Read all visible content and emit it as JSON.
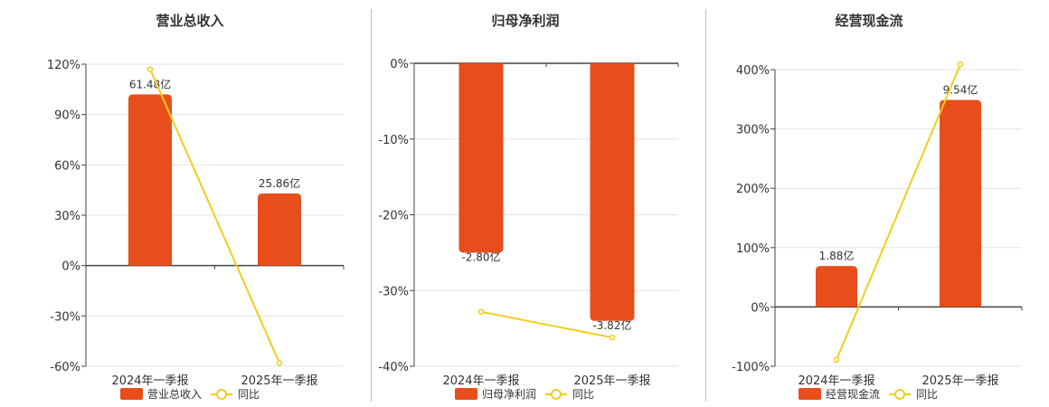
{
  "colors": {
    "bar": "#e84d1c",
    "line": "#f2cd1e",
    "grid": "#e3e3e3",
    "axis": "#444444",
    "divider": "#bdbdbd"
  },
  "legend_line_label": "同比",
  "chart_data": [
    {
      "type": "bar",
      "title": "营业总收入",
      "categories": [
        "2024年一季报",
        "2025年一季报"
      ],
      "series": [
        {
          "name": "营业总收入",
          "kind": "bar",
          "values": [
            61.48,
            25.86
          ],
          "labels": [
            "61.48亿",
            "25.86亿"
          ]
        },
        {
          "name": "同比",
          "kind": "line",
          "values": [
            117,
            -58
          ]
        }
      ],
      "bar_heights_pct": [
        102,
        43
      ],
      "yticks": [
        "120%",
        "90%",
        "60%",
        "30%",
        "0%",
        "-30%",
        "-60%"
      ],
      "ylim": [
        -60,
        120
      ],
      "grid": true,
      "legend": "bottom"
    },
    {
      "type": "bar",
      "title": "归母净利润",
      "categories": [
        "2024年一季报",
        "2025年一季报"
      ],
      "series": [
        {
          "name": "归母净利润",
          "kind": "bar",
          "values": [
            -2.8,
            -3.82
          ],
          "labels": [
            "-2.80亿",
            "-3.82亿"
          ]
        },
        {
          "name": "同比",
          "kind": "line",
          "values": [
            -32.8,
            -36.2
          ]
        }
      ],
      "bar_heights_pct": [
        -25,
        -34
      ],
      "yticks": [
        "0%",
        "-10%",
        "-20%",
        "-30%",
        "-40%"
      ],
      "ylim": [
        -40,
        0
      ],
      "grid": true,
      "legend": "bottom"
    },
    {
      "type": "bar",
      "title": "经营现金流",
      "categories": [
        "2024年一季报",
        "2025年一季报"
      ],
      "series": [
        {
          "name": "经营现金流",
          "kind": "bar",
          "values": [
            1.88,
            9.54
          ],
          "labels": [
            "1.88亿",
            "9.54亿"
          ]
        },
        {
          "name": "同比",
          "kind": "line",
          "values": [
            -89,
            409
          ]
        }
      ],
      "bar_heights_pct": [
        69,
        349
      ],
      "yticks": [
        "400%",
        "300%",
        "200%",
        "100%",
        "0%",
        "-100%"
      ],
      "ylim": [
        -100,
        400
      ],
      "grid": true,
      "legend": "bottom"
    }
  ]
}
